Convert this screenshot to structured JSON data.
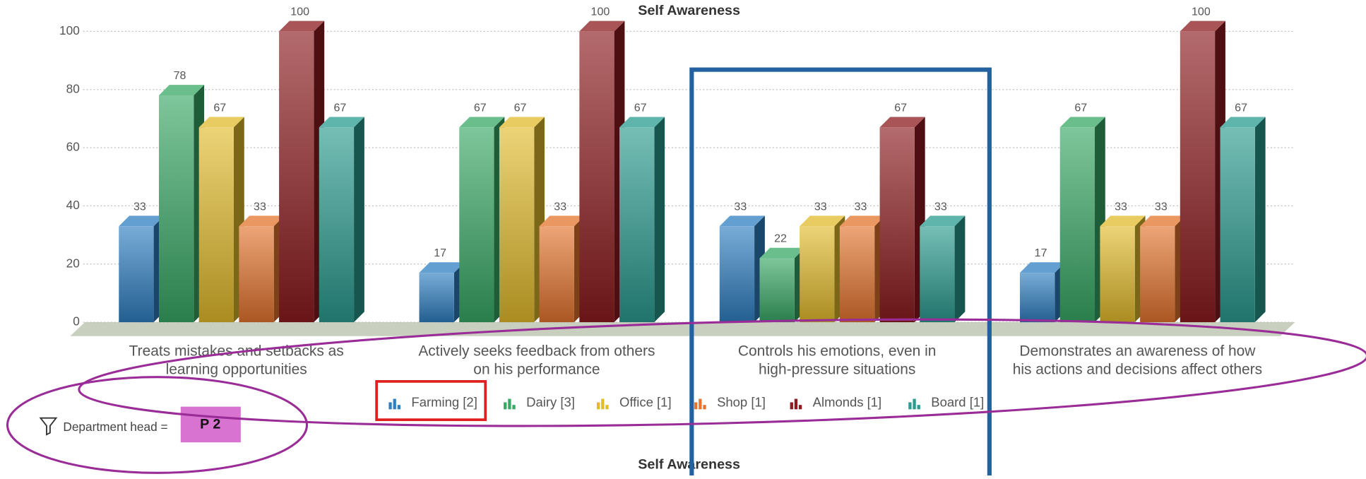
{
  "chart_data": {
    "type": "bar3d",
    "title": "Self Awareness",
    "categories": [
      [
        "Treats mistakes and setbacks as",
        "learning opportunities"
      ],
      [
        "Actively seeks feedback from others",
        "on his performance"
      ],
      [
        "Controls his emotions, even in",
        "high-pressure situations"
      ],
      [
        "Demonstrates an awareness of how",
        "his actions and decisions affect others"
      ]
    ],
    "series": [
      {
        "name": "Farming [2]",
        "color": "#2f7fc1",
        "values": [
          33,
          17,
          33,
          17
        ]
      },
      {
        "name": "Dairy [3]",
        "color": "#38a865",
        "values": [
          78,
          67,
          22,
          67
        ]
      },
      {
        "name": "Office [1]",
        "color": "#e2bb2c",
        "values": [
          67,
          67,
          33,
          33
        ]
      },
      {
        "name": "Shop [1]",
        "color": "#e4742e",
        "values": [
          33,
          33,
          33,
          33
        ]
      },
      {
        "name": "Almonds [1]",
        "color": "#8c1c1f",
        "values": [
          100,
          100,
          67,
          100
        ]
      },
      {
        "name": "Board [1]",
        "color": "#2a9b8f",
        "values": [
          67,
          67,
          33,
          67
        ]
      }
    ],
    "ylim": [
      0,
      100
    ],
    "yticks": [
      0,
      20,
      40,
      60,
      80,
      100
    ],
    "grid": true
  },
  "filter": {
    "label": "Department head =",
    "value": "P 2"
  },
  "next_title": "Self Awareness"
}
